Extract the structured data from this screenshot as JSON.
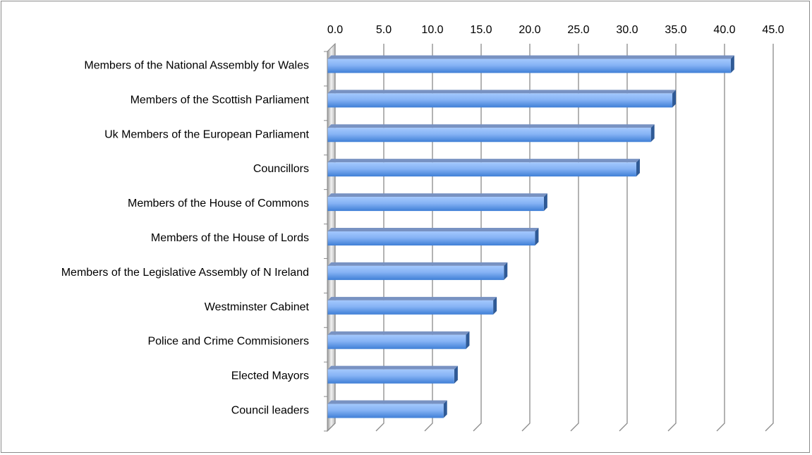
{
  "chart_data": {
    "type": "bar",
    "orientation": "horizontal",
    "style": "3d-clustered",
    "title": "",
    "xlabel": "",
    "ylabel": "",
    "xlim": [
      0,
      45
    ],
    "x_ticks": [
      "0.0",
      "5.0",
      "10.0",
      "15.0",
      "20.0",
      "25.0",
      "30.0",
      "35.0",
      "40.0",
      "45.0"
    ],
    "x_axis_position": "top",
    "grid": true,
    "categories": [
      "Members of the National Assembly for Wales",
      "Members of the Scottish Parliament",
      "Uk Members of the European Parliament",
      "Councillors",
      "Members of the House of Commons",
      "Members of the House of Lords",
      "Members of the Legislative Assembly of N Ireland",
      "Westminster Cabinet",
      "Police and Crime Commisioners",
      "Elected Mayors",
      "Council leaders"
    ],
    "values": [
      41.4,
      35.4,
      33.2,
      31.7,
      22.2,
      21.3,
      18.1,
      17.0,
      14.2,
      13.0,
      11.9
    ],
    "colors": {
      "bar_front": "#5b9bec",
      "bar_light": "#9cc3fb",
      "bar_top": "#7892c2",
      "bar_side": "#2f5a96",
      "grid": "#8a8a8a"
    }
  }
}
